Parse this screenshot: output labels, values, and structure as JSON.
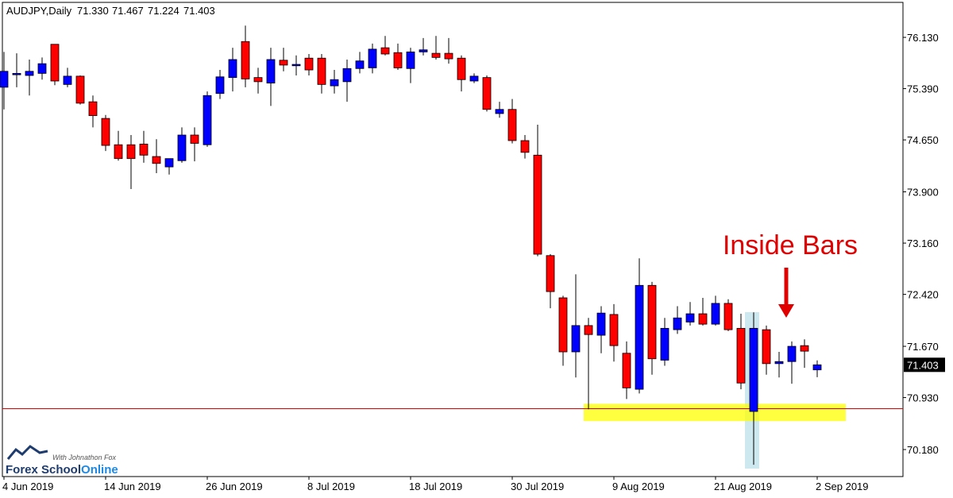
{
  "chart_data": {
    "type": "candlestick",
    "title": "AUDJPY,Daily",
    "last_ohlc_labels": [
      "71.330",
      "71.467",
      "71.224",
      "71.403"
    ],
    "annotation": "Inside Bars",
    "brand": {
      "tagline": "With Johnathon Fox",
      "part1": "Forex School",
      "part2": "Online"
    },
    "categories": [
      "4 Jun 2019",
      null,
      null,
      null,
      null,
      null,
      null,
      null,
      "14 Jun 2019",
      null,
      null,
      null,
      null,
      null,
      null,
      null,
      "26 Jun 2019",
      null,
      null,
      null,
      null,
      null,
      null,
      null,
      "8 Jul 2019",
      null,
      null,
      null,
      null,
      null,
      null,
      null,
      "18 Jul 2019",
      null,
      null,
      null,
      null,
      null,
      null,
      null,
      "30 Jul 2019",
      null,
      null,
      null,
      null,
      null,
      null,
      null,
      "9 Aug 2019",
      null,
      null,
      null,
      null,
      null,
      null,
      null,
      "21 Aug 2019",
      null,
      null,
      null,
      null,
      null,
      null,
      null,
      "2 Sep 2019"
    ],
    "open": [
      75.41,
      75.59,
      75.58,
      75.61,
      76.03,
      75.45,
      75.57,
      75.2,
      74.96,
      74.58,
      74.58,
      74.59,
      74.41,
      74.26,
      74.35,
      74.72,
      74.58,
      75.32,
      75.55,
      76.07,
      75.55,
      75.47,
      75.8,
      75.72,
      75.83,
      75.83,
      75.43,
      75.49,
      75.68,
      75.69,
      75.98,
      75.91,
      75.68,
      75.92,
      75.9,
      75.9,
      75.83,
      75.5,
      75.55,
      75.03,
      75.09,
      74.64,
      74.43,
      72.98,
      72.37,
      71.59,
      71.97,
      71.83,
      72.13,
      71.57,
      71.05,
      72.55,
      71.47,
      71.91,
      72.02,
      72.14,
      71.99,
      72.29,
      71.93,
      70.73,
      71.91,
      71.42,
      71.45,
      71.68,
      71.33
    ],
    "high": [
      75.92,
      75.9,
      75.81,
      75.84,
      76.03,
      75.69,
      75.58,
      75.29,
      75.01,
      74.78,
      74.72,
      74.78,
      74.66,
      74.38,
      74.83,
      74.83,
      75.35,
      75.66,
      75.98,
      76.3,
      75.69,
      75.98,
      75.98,
      75.87,
      75.89,
      75.89,
      75.66,
      75.81,
      75.92,
      76.04,
      76.15,
      76.04,
      75.98,
      76.12,
      76.15,
      76.12,
      75.87,
      75.61,
      75.58,
      75.2,
      75.24,
      74.72,
      74.87,
      73.0,
      72.4,
      72.71,
      72.08,
      72.25,
      72.28,
      71.74,
      72.94,
      72.6,
      72.08,
      72.25,
      72.31,
      72.37,
      72.4,
      72.35,
      72.14,
      72.16,
      71.97,
      71.59,
      71.74,
      71.77,
      71.467
    ],
    "low": [
      75.09,
      75.41,
      75.29,
      75.52,
      75.44,
      75.41,
      75.16,
      74.83,
      74.49,
      74.35,
      73.94,
      74.32,
      74.17,
      74.15,
      74.32,
      74.34,
      74.55,
      75.24,
      75.35,
      75.41,
      75.32,
      75.14,
      75.64,
      75.58,
      75.58,
      75.32,
      75.32,
      75.2,
      75.61,
      75.61,
      75.87,
      75.66,
      75.47,
      75.87,
      75.81,
      75.75,
      75.35,
      75.47,
      75.06,
      74.97,
      74.6,
      74.38,
      72.97,
      72.22,
      71.39,
      71.22,
      70.76,
      71.57,
      71.45,
      70.91,
      70.99,
      71.26,
      71.39,
      71.85,
      71.97,
      71.97,
      71.97,
      71.89,
      71.05,
      69.96,
      71.26,
      71.22,
      71.13,
      71.36,
      71.224
    ],
    "close": [
      75.64,
      75.61,
      75.64,
      75.75,
      75.5,
      75.57,
      75.18,
      75.0,
      74.57,
      74.38,
      74.38,
      74.43,
      74.31,
      74.38,
      74.72,
      74.6,
      75.29,
      75.56,
      75.81,
      75.53,
      75.49,
      75.81,
      75.73,
      75.74,
      75.66,
      75.45,
      75.52,
      75.68,
      75.79,
      75.96,
      75.89,
      75.69,
      75.92,
      75.95,
      75.84,
      75.82,
      75.52,
      75.57,
      75.09,
      75.09,
      74.64,
      74.47,
      73.0,
      72.46,
      71.59,
      71.97,
      71.84,
      72.15,
      71.68,
      71.07,
      72.55,
      71.49,
      71.93,
      72.08,
      72.14,
      71.99,
      72.29,
      71.91,
      71.14,
      71.93,
      71.42,
      71.45,
      71.67,
      71.6,
      71.403
    ],
    "up_color": "#0000ff",
    "down_color": "#ff0000",
    "support_line": 70.77,
    "support_zone": [
      70.59,
      70.84
    ],
    "ylim": [
      69.79,
      76.635
    ],
    "yticks": [
      {
        "value": 76.13,
        "label": "76.130"
      },
      {
        "value": 75.39,
        "label": "75.390"
      },
      {
        "value": 74.65,
        "label": "74.650"
      },
      {
        "value": 73.9,
        "label": "73.900"
      },
      {
        "value": 73.16,
        "label": "73.160"
      },
      {
        "value": 72.42,
        "label": "72.420"
      },
      {
        "value": 71.67,
        "label": "71.670"
      },
      {
        "value": 70.93,
        "label": "70.930"
      },
      {
        "value": 70.18,
        "label": "70.180"
      }
    ]
  }
}
